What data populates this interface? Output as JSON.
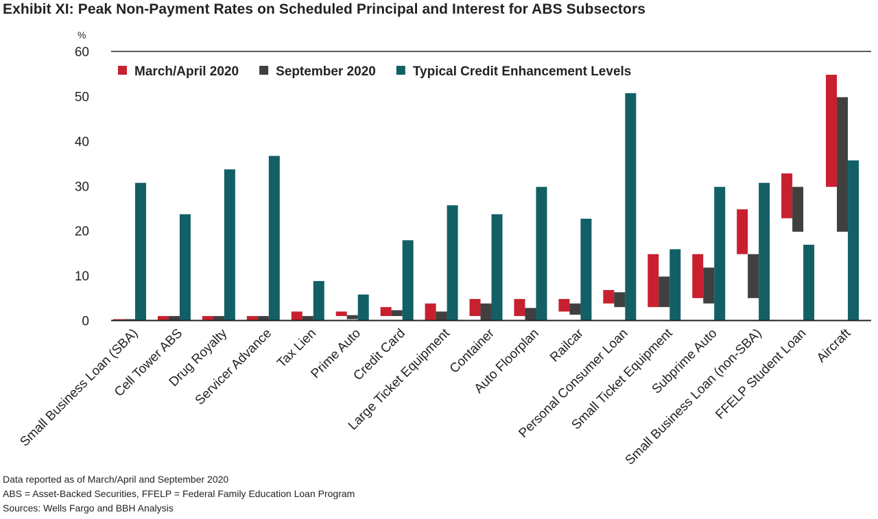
{
  "title": "Exhibit XI: Peak Non-Payment Rates on Scheduled Principal and Interest for ABS Subsectors",
  "footnotes": [
    "Data reported as of March/April and September  2020",
    "ABS = Asset-Backed Securities, FFELP = Federal Family Education Loan Program",
    "Sources: Wells Fargo and BBH Analysis"
  ],
  "chart_data": {
    "type": "bar",
    "unit_label": "%",
    "ylim": [
      0,
      60
    ],
    "yticks": [
      0,
      10,
      20,
      30,
      40,
      50,
      60
    ],
    "grid": false,
    "legend_position": "top-left",
    "categories": [
      "Small Business Loan (SBA)",
      "Cell Tower ABS",
      "Drug Royalty",
      "Servicer Advance",
      "Tax Lien",
      "Prime Auto",
      "Credit Card",
      "Large Ticket Equipment",
      "Container",
      "Auto Floorplan",
      "Railcar",
      "Personal Consumer Loan",
      "Small Ticket Equipment",
      "Subprime Auto",
      "Small Business Loan (non-SBA)",
      "FFELP Student Loan",
      "Aircraft"
    ],
    "series": [
      {
        "name": "March/April 2020",
        "color": "#c8202f",
        "ranges": [
          [
            0,
            0.3
          ],
          [
            0,
            1
          ],
          [
            0,
            1
          ],
          [
            0,
            1
          ],
          [
            0,
            2
          ],
          [
            1,
            2
          ],
          [
            1,
            3
          ],
          [
            0,
            3.8
          ],
          [
            1,
            4.8
          ],
          [
            1,
            4.8
          ],
          [
            2,
            4.8
          ],
          [
            3.8,
            6.8
          ],
          [
            3,
            14.8
          ],
          [
            5,
            14.8
          ],
          [
            14.8,
            24.8
          ],
          [
            22.8,
            32.8
          ],
          [
            29.8,
            54.8
          ]
        ]
      },
      {
        "name": "September 2020",
        "color": "#404040",
        "ranges": [
          [
            0,
            0.3
          ],
          [
            0,
            1
          ],
          [
            0,
            1
          ],
          [
            0,
            1
          ],
          [
            0,
            1
          ],
          [
            0.3,
            1.2
          ],
          [
            1,
            2.3
          ],
          [
            0,
            2
          ],
          [
            0,
            3.8
          ],
          [
            0,
            2.8
          ],
          [
            1.3,
            3.8
          ],
          [
            3,
            6.3
          ],
          [
            3,
            9.8
          ],
          [
            3.8,
            11.8
          ],
          [
            5,
            14.8
          ],
          [
            19.8,
            29.8
          ],
          [
            19.8,
            49.8
          ]
        ]
      },
      {
        "name": "Typical Credit Enhancement Levels",
        "color": "#135f66",
        "values": [
          30.7,
          23.7,
          33.7,
          36.7,
          8.8,
          5.8,
          17.9,
          25.7,
          23.7,
          29.8,
          22.7,
          50.7,
          15.9,
          29.8,
          30.7,
          16.9,
          35.7
        ]
      }
    ]
  }
}
